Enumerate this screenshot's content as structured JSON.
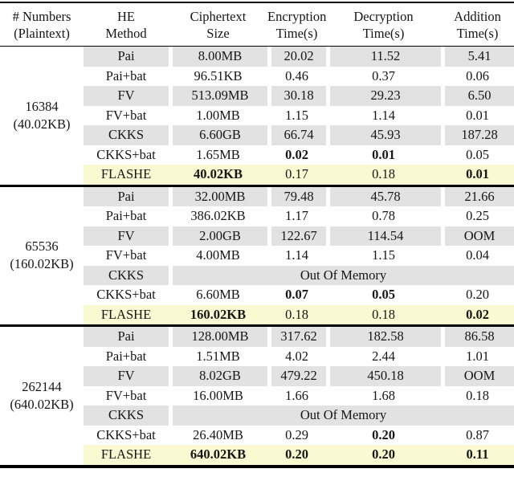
{
  "table": {
    "colors": {
      "row_shade": "#e2e2e2",
      "flashe_highlight": "#fafad2"
    },
    "headers": [
      {
        "line1": "# Numbers",
        "line2": "(Plaintext)"
      },
      {
        "line1": "HE",
        "line2": "Method"
      },
      {
        "line1": "Ciphertext",
        "line2": "Size"
      },
      {
        "line1": "Encryption",
        "line2": "Time(s)"
      },
      {
        "line1": "Decryption",
        "line2": "Time(s)"
      },
      {
        "line1": "Addition",
        "line2": "Time(s)"
      }
    ],
    "groups": [
      {
        "count": "16384",
        "plaintext_size": "(40.02KB)",
        "rows": [
          {
            "method": "Pai",
            "size": "8.00MB",
            "enc": "20.02",
            "dec": "11.52",
            "add": "5.41"
          },
          {
            "method": "Pai+bat",
            "size": "96.51KB",
            "enc": "0.46",
            "dec": "0.37",
            "add": "0.06"
          },
          {
            "method": "FV",
            "size": "513.09MB",
            "enc": "30.18",
            "dec": "29.23",
            "add": "6.50"
          },
          {
            "method": "FV+bat",
            "size": "1.00MB",
            "enc": "1.15",
            "dec": "1.14",
            "add": "0.01"
          },
          {
            "method": "CKKS",
            "size": "6.60GB",
            "enc": "66.74",
            "dec": "45.93",
            "add": "187.28"
          },
          {
            "method": "CKKS+bat",
            "size": "1.65MB",
            "enc": "0.02",
            "dec": "0.01",
            "add": "0.05"
          },
          {
            "method": "FLASHE",
            "size": "40.02KB",
            "enc": "0.17",
            "dec": "0.18",
            "add": "0.01"
          }
        ]
      },
      {
        "count": "65536",
        "plaintext_size": "(160.02KB)",
        "rows": [
          {
            "method": "Pai",
            "size": "32.00MB",
            "enc": "79.48",
            "dec": "45.78",
            "add": "21.66"
          },
          {
            "method": "Pai+bat",
            "size": "386.02KB",
            "enc": "1.17",
            "dec": "0.78",
            "add": "0.25"
          },
          {
            "method": "FV",
            "size": "2.00GB",
            "enc": "122.67",
            "dec": "114.54",
            "add": "OOM"
          },
          {
            "method": "FV+bat",
            "size": "4.00MB",
            "enc": "1.14",
            "dec": "1.15",
            "add": "0.04"
          },
          {
            "method": "CKKS",
            "oom": "Out Of Memory"
          },
          {
            "method": "CKKS+bat",
            "size": "6.60MB",
            "enc": "0.07",
            "dec": "0.05",
            "add": "0.20"
          },
          {
            "method": "FLASHE",
            "size": "160.02KB",
            "enc": "0.18",
            "dec": "0.18",
            "add": "0.02"
          }
        ]
      },
      {
        "count": "262144",
        "plaintext_size": "(640.02KB)",
        "rows": [
          {
            "method": "Pai",
            "size": "128.00MB",
            "enc": "317.62",
            "dec": "182.58",
            "add": "86.58"
          },
          {
            "method": "Pai+bat",
            "size": "1.51MB",
            "enc": "4.02",
            "dec": "2.44",
            "add": "1.01"
          },
          {
            "method": "FV",
            "size": "8.02GB",
            "enc": "479.22",
            "dec": "450.18",
            "add": "OOM"
          },
          {
            "method": "FV+bat",
            "size": "16.00MB",
            "enc": "1.66",
            "dec": "1.68",
            "add": "0.18"
          },
          {
            "method": "CKKS",
            "oom": "Out Of Memory"
          },
          {
            "method": "CKKS+bat",
            "size": "26.40MB",
            "enc": "0.29",
            "dec": "0.20",
            "add": "0.87"
          },
          {
            "method": "FLASHE",
            "size": "640.02KB",
            "enc": "0.20",
            "dec": "0.20",
            "add": "0.11"
          }
        ]
      }
    ]
  }
}
